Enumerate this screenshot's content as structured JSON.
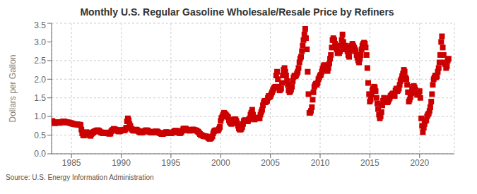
{
  "chart_data": {
    "type": "scatter",
    "title": "Monthly U.S. Regular Gasoline Wholesale/Resale Price by Refiners",
    "y_label": "Dollars per Gallon",
    "annotations": [
      "Source: U.S. Energy Information Administration"
    ],
    "color": "#cc0000",
    "marker": "square",
    "grid": true,
    "xlim": [
      1983.0,
      2023.5
    ],
    "xticks": [
      1985,
      1990,
      1995,
      2000,
      2005,
      2010,
      2015,
      2020
    ],
    "ylim": [
      0.0,
      3.5
    ],
    "yticks": [
      {
        "value": 0.0,
        "label": "0.0"
      },
      0.5,
      {
        "value": 1.0,
        "label": "1.0"
      },
      1.5,
      {
        "value": 2.0,
        "label": "2.0"
      },
      2.5,
      {
        "value": 3.0,
        "label": "3.0"
      },
      3.5
    ],
    "x": [
      1983.08,
      1983.17,
      1983.25,
      1983.33,
      1983.42,
      1983.5,
      1983.58,
      1983.67,
      1983.75,
      1983.83,
      1983.92,
      1984.0,
      1984.08,
      1984.17,
      1984.25,
      1984.33,
      1984.42,
      1984.5,
      1984.58,
      1984.67,
      1984.75,
      1984.83,
      1984.92,
      1985.0,
      1985.08,
      1985.17,
      1985.25,
      1985.33,
      1985.42,
      1985.5,
      1985.58,
      1985.67,
      1985.75,
      1985.83,
      1985.92,
      1986.0,
      1986.08,
      1986.17,
      1986.25,
      1986.33,
      1986.42,
      1986.5,
      1986.58,
      1986.67,
      1986.75,
      1986.83,
      1986.92,
      1987.0,
      1987.08,
      1987.17,
      1987.25,
      1987.33,
      1987.42,
      1987.5,
      1987.58,
      1987.67,
      1987.75,
      1987.83,
      1987.92,
      1988.0,
      1988.08,
      1988.17,
      1988.25,
      1988.33,
      1988.42,
      1988.5,
      1988.58,
      1988.67,
      1988.75,
      1988.83,
      1988.92,
      1989.0,
      1989.08,
      1989.17,
      1989.25,
      1989.33,
      1989.42,
      1989.5,
      1989.58,
      1989.67,
      1989.75,
      1989.83,
      1989.92,
      1990.0,
      1990.08,
      1990.17,
      1990.25,
      1990.33,
      1990.42,
      1990.5,
      1990.58,
      1990.67,
      1990.75,
      1990.83,
      1990.92,
      1991.0,
      1991.08,
      1991.17,
      1991.25,
      1991.33,
      1991.42,
      1991.5,
      1991.58,
      1991.67,
      1991.75,
      1991.83,
      1991.92,
      1992.0,
      1992.08,
      1992.17,
      1992.25,
      1992.33,
      1992.42,
      1992.5,
      1992.58,
      1992.67,
      1992.75,
      1992.83,
      1992.92,
      1993.0,
      1993.08,
      1993.17,
      1993.25,
      1993.33,
      1993.42,
      1993.5,
      1993.58,
      1993.67,
      1993.75,
      1993.83,
      1993.92,
      1994.0,
      1994.08,
      1994.17,
      1994.25,
      1994.33,
      1994.42,
      1994.5,
      1994.58,
      1994.67,
      1994.75,
      1994.83,
      1994.92,
      1995.0,
      1995.08,
      1995.17,
      1995.25,
      1995.33,
      1995.42,
      1995.5,
      1995.58,
      1995.67,
      1995.75,
      1995.83,
      1995.92,
      1996.0,
      1996.08,
      1996.17,
      1996.25,
      1996.33,
      1996.42,
      1996.5,
      1996.58,
      1996.67,
      1996.75,
      1996.83,
      1996.92,
      1997.0,
      1997.08,
      1997.17,
      1997.25,
      1997.33,
      1997.42,
      1997.5,
      1997.58,
      1997.67,
      1997.75,
      1997.83,
      1997.92,
      1998.0,
      1998.08,
      1998.17,
      1998.25,
      1998.33,
      1998.42,
      1998.5,
      1998.58,
      1998.67,
      1998.75,
      1998.83,
      1998.92,
      1999.0,
      1999.08,
      1999.17,
      1999.25,
      1999.33,
      1999.42,
      1999.5,
      1999.58,
      1999.67,
      1999.75,
      1999.83,
      1999.92,
      2000.0,
      2000.08,
      2000.17,
      2000.25,
      2000.33,
      2000.42,
      2000.5,
      2000.58,
      2000.67,
      2000.75,
      2000.83,
      2000.92,
      2001.0,
      2001.08,
      2001.17,
      2001.25,
      2001.33,
      2001.42,
      2001.5,
      2001.58,
      2001.67,
      2001.75,
      2001.83,
      2001.92,
      2002.0,
      2002.08,
      2002.17,
      2002.25,
      2002.33,
      2002.42,
      2002.5,
      2002.58,
      2002.67,
      2002.75,
      2002.83,
      2002.92,
      2003.0,
      2003.08,
      2003.17,
      2003.25,
      2003.33,
      2003.42,
      2003.5,
      2003.58,
      2003.67,
      2003.75,
      2003.83,
      2003.92,
      2004.0,
      2004.08,
      2004.17,
      2004.25,
      2004.33,
      2004.42,
      2004.5,
      2004.58,
      2004.67,
      2004.75,
      2004.83,
      2004.92,
      2005.0,
      2005.08,
      2005.17,
      2005.25,
      2005.33,
      2005.42,
      2005.5,
      2005.58,
      2005.67,
      2005.75,
      2005.83,
      2005.92,
      2006.0,
      2006.08,
      2006.17,
      2006.25,
      2006.33,
      2006.42,
      2006.5,
      2006.58,
      2006.67,
      2006.75,
      2006.83,
      2006.92,
      2007.0,
      2007.08,
      2007.17,
      2007.25,
      2007.33,
      2007.42,
      2007.5,
      2007.58,
      2007.67,
      2007.75,
      2007.83,
      2007.92,
      2008.0,
      2008.08,
      2008.17,
      2008.25,
      2008.33,
      2008.42,
      2008.5,
      2008.58,
      2008.67,
      2008.75,
      2008.83,
      2008.92,
      2009.0,
      2009.08,
      2009.17,
      2009.25,
      2009.33,
      2009.42,
      2009.5,
      2009.58,
      2009.67,
      2009.75,
      2009.83,
      2009.92,
      2010.0,
      2010.08,
      2010.17,
      2010.25,
      2010.33,
      2010.42,
      2010.5,
      2010.58,
      2010.67,
      2010.75,
      2010.83,
      2010.92,
      2011.0,
      2011.08,
      2011.17,
      2011.25,
      2011.33,
      2011.42,
      2011.5,
      2011.58,
      2011.67,
      2011.75,
      2011.83,
      2011.92,
      2012.0,
      2012.08,
      2012.17,
      2012.25,
      2012.33,
      2012.42,
      2012.5,
      2012.58,
      2012.67,
      2012.75,
      2012.83,
      2012.92,
      2013.0,
      2013.08,
      2013.17,
      2013.25,
      2013.33,
      2013.42,
      2013.5,
      2013.58,
      2013.67,
      2013.75,
      2013.83,
      2013.92,
      2014.0,
      2014.08,
      2014.17,
      2014.25,
      2014.33,
      2014.42,
      2014.5,
      2014.58,
      2014.67,
      2014.75,
      2014.83,
      2014.92,
      2015.0,
      2015.08,
      2015.17,
      2015.25,
      2015.33,
      2015.42,
      2015.5,
      2015.58,
      2015.67,
      2015.75,
      2015.83,
      2015.92,
      2016.0,
      2016.08,
      2016.17,
      2016.25,
      2016.33,
      2016.42,
      2016.5,
      2016.58,
      2016.67,
      2016.75,
      2016.83,
      2016.92,
      2017.0,
      2017.08,
      2017.17,
      2017.25,
      2017.33,
      2017.42,
      2017.5,
      2017.58,
      2017.67,
      2017.75,
      2017.83,
      2017.92,
      2018.0,
      2018.08,
      2018.17,
      2018.25,
      2018.33,
      2018.42,
      2018.5,
      2018.58,
      2018.67,
      2018.75,
      2018.83,
      2018.92,
      2019.0,
      2019.08,
      2019.17,
      2019.25,
      2019.33,
      2019.42,
      2019.5,
      2019.58,
      2019.67,
      2019.75,
      2019.83,
      2019.92,
      2020.0,
      2020.08,
      2020.17,
      2020.25,
      2020.33,
      2020.42,
      2020.5,
      2020.58,
      2020.67,
      2020.75,
      2020.83,
      2020.92,
      2021.0,
      2021.08,
      2021.17,
      2021.25,
      2021.33,
      2021.42,
      2021.5,
      2021.58,
      2021.67,
      2021.75,
      2021.83,
      2021.92,
      2022.0,
      2022.08,
      2022.17,
      2022.25,
      2022.33,
      2022.42,
      2022.5,
      2022.58,
      2022.67,
      2022.75,
      2022.83,
      2022.92
    ],
    "values": [
      0.88,
      0.85,
      0.83,
      0.82,
      0.83,
      0.84,
      0.85,
      0.84,
      0.83,
      0.83,
      0.84,
      0.85,
      0.86,
      0.86,
      0.87,
      0.86,
      0.85,
      0.84,
      0.84,
      0.84,
      0.84,
      0.83,
      0.82,
      0.82,
      0.81,
      0.8,
      0.8,
      0.79,
      0.79,
      0.79,
      0.79,
      0.78,
      0.78,
      0.78,
      0.77,
      0.65,
      0.55,
      0.5,
      0.49,
      0.52,
      0.55,
      0.58,
      0.56,
      0.57,
      0.54,
      0.5,
      0.48,
      0.53,
      0.55,
      0.57,
      0.59,
      0.6,
      0.61,
      0.62,
      0.63,
      0.63,
      0.62,
      0.6,
      0.58,
      0.57,
      0.56,
      0.55,
      0.55,
      0.56,
      0.57,
      0.57,
      0.56,
      0.55,
      0.54,
      0.54,
      0.54,
      0.6,
      0.63,
      0.64,
      0.67,
      0.66,
      0.65,
      0.64,
      0.63,
      0.61,
      0.6,
      0.6,
      0.61,
      0.63,
      0.64,
      0.63,
      0.63,
      0.63,
      0.65,
      0.7,
      0.87,
      0.95,
      0.9,
      0.8,
      0.75,
      0.68,
      0.65,
      0.63,
      0.62,
      0.62,
      0.63,
      0.65,
      0.64,
      0.62,
      0.6,
      0.59,
      0.57,
      0.57,
      0.57,
      0.58,
      0.6,
      0.61,
      0.62,
      0.63,
      0.63,
      0.62,
      0.6,
      0.59,
      0.58,
      0.57,
      0.57,
      0.57,
      0.58,
      0.59,
      0.6,
      0.6,
      0.6,
      0.59,
      0.57,
      0.56,
      0.55,
      0.54,
      0.53,
      0.53,
      0.54,
      0.55,
      0.57,
      0.58,
      0.58,
      0.57,
      0.56,
      0.55,
      0.55,
      0.55,
      0.56,
      0.57,
      0.58,
      0.6,
      0.62,
      0.62,
      0.61,
      0.59,
      0.57,
      0.56,
      0.55,
      0.57,
      0.6,
      0.63,
      0.67,
      0.68,
      0.68,
      0.67,
      0.65,
      0.63,
      0.63,
      0.62,
      0.62,
      0.63,
      0.64,
      0.65,
      0.65,
      0.64,
      0.63,
      0.63,
      0.62,
      0.6,
      0.59,
      0.56,
      0.53,
      0.51,
      0.5,
      0.49,
      0.48,
      0.47,
      0.47,
      0.47,
      0.46,
      0.45,
      0.43,
      0.41,
      0.4,
      0.42,
      0.43,
      0.47,
      0.55,
      0.6,
      0.62,
      0.63,
      0.63,
      0.62,
      0.63,
      0.67,
      0.72,
      0.88,
      0.96,
      1.0,
      1.05,
      1.1,
      1.08,
      1.05,
      1.03,
      1.0,
      0.98,
      0.9,
      0.85,
      0.82,
      0.8,
      0.82,
      0.88,
      0.92,
      0.93,
      0.92,
      0.88,
      0.82,
      0.75,
      0.68,
      0.65,
      0.65,
      0.67,
      0.72,
      0.8,
      0.88,
      0.9,
      0.9,
      0.88,
      0.87,
      0.88,
      0.92,
      0.95,
      1.05,
      1.1,
      1.18,
      1.05,
      0.95,
      0.92,
      0.95,
      0.97,
      0.95,
      0.97,
      0.95,
      0.95,
      1.05,
      1.12,
      1.18,
      1.3,
      1.38,
      1.42,
      1.38,
      1.4,
      1.42,
      1.5,
      1.55,
      1.52,
      1.55,
      1.6,
      1.65,
      1.7,
      1.75,
      1.78,
      1.8,
      2.1,
      2.2,
      2.0,
      1.8,
      1.7,
      1.72,
      1.75,
      1.9,
      2.1,
      2.25,
      2.3,
      2.2,
      2.1,
      1.95,
      1.85,
      1.7,
      1.65,
      1.68,
      1.72,
      1.8,
      1.95,
      2.05,
      2.1,
      2.08,
      2.1,
      2.15,
      2.2,
      2.3,
      2.45,
      2.55,
      2.6,
      2.75,
      2.9,
      3.05,
      3.2,
      3.35,
      3.1,
      2.8,
      2.2,
      1.6,
      1.1,
      1.1,
      1.15,
      1.25,
      1.45,
      1.65,
      1.8,
      1.85,
      1.88,
      1.85,
      1.9,
      2.0,
      2.05,
      2.1,
      2.12,
      2.2,
      2.28,
      2.35,
      2.38,
      2.35,
      2.32,
      2.25,
      2.22,
      2.3,
      2.42,
      2.55,
      2.65,
      2.85,
      3.05,
      3.1,
      3.05,
      2.95,
      2.9,
      2.8,
      2.7,
      2.75,
      2.7,
      2.75,
      2.9,
      3.05,
      3.2,
      3.0,
      2.85,
      2.8,
      2.9,
      2.85,
      2.75,
      2.65,
      2.6,
      2.75,
      2.85,
      2.9,
      2.95,
      2.9,
      2.85,
      2.8,
      2.75,
      2.65,
      2.58,
      2.5,
      2.45,
      2.55,
      2.65,
      2.8,
      2.9,
      2.95,
      2.98,
      2.95,
      2.85,
      2.65,
      2.3,
      1.9,
      1.6,
      1.4,
      1.45,
      1.58,
      1.7,
      1.75,
      1.8,
      1.78,
      1.68,
      1.5,
      1.35,
      1.2,
      1.05,
      0.95,
      1.0,
      1.12,
      1.3,
      1.42,
      1.5,
      1.48,
      1.45,
      1.4,
      1.38,
      1.4,
      1.45,
      1.5,
      1.55,
      1.58,
      1.6,
      1.62,
      1.6,
      1.55,
      1.7,
      1.75,
      1.68,
      1.7,
      1.75,
      1.85,
      1.95,
      2.0,
      2.08,
      2.15,
      2.25,
      2.2,
      2.05,
      2.0,
      1.85,
      1.65,
      1.4,
      1.45,
      1.52,
      1.62,
      1.75,
      1.8,
      1.82,
      1.78,
      1.72,
      1.65,
      1.58,
      1.6,
      1.65,
      1.68,
      1.5,
      0.95,
      0.75,
      0.58,
      0.7,
      0.8,
      0.88,
      0.9,
      1.0,
      1.05,
      1.08,
      1.15,
      1.25,
      1.4,
      1.6,
      1.85,
      2.0,
      2.05,
      2.1,
      2.05,
      2.08,
      2.2,
      2.3,
      2.45,
      2.65,
      3.0,
      3.15,
      2.85,
      2.65,
      2.45,
      2.4,
      2.3,
      2.35,
      2.5,
      2.55
    ]
  }
}
